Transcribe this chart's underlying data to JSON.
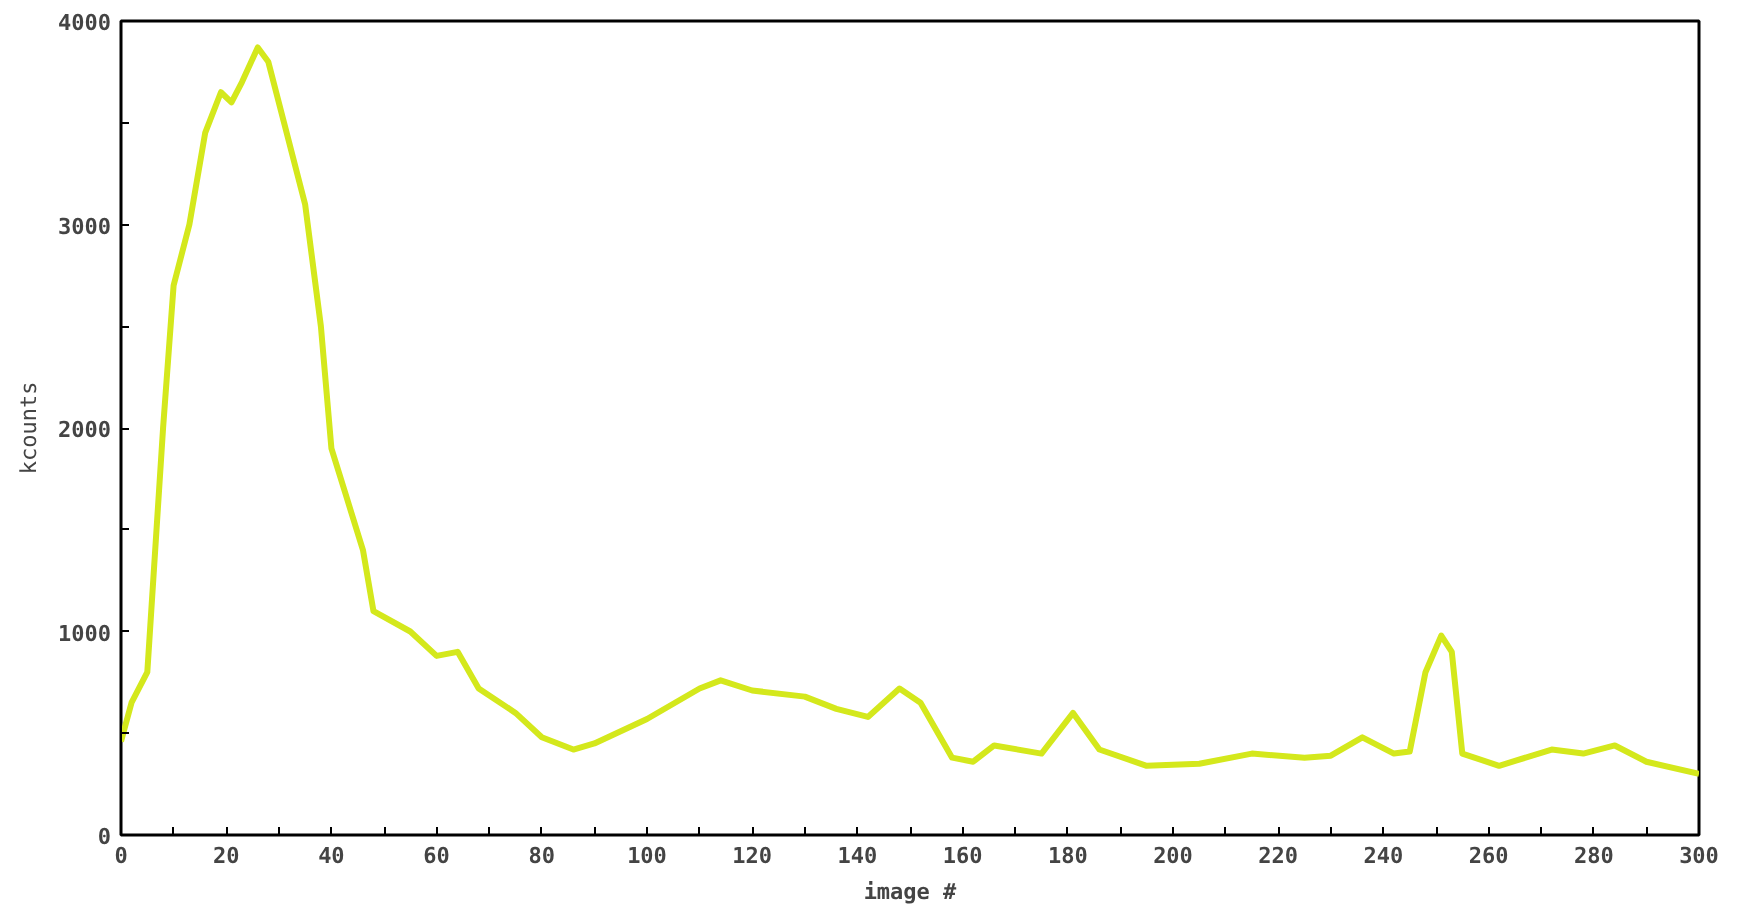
{
  "chart_data": {
    "type": "line",
    "xlabel": "image #",
    "ylabel": "kcounts",
    "x": [
      0,
      2,
      5,
      8,
      10,
      13,
      16,
      19,
      21,
      23,
      26,
      28,
      31,
      35,
      38,
      40,
      43,
      46,
      48,
      55,
      60,
      64,
      68,
      75,
      80,
      86,
      90,
      100,
      110,
      114,
      120,
      130,
      136,
      142,
      148,
      152,
      158,
      162,
      166,
      175,
      181,
      186,
      195,
      205,
      215,
      225,
      230,
      236,
      242,
      245,
      248,
      251,
      253,
      255,
      262,
      272,
      278,
      284,
      290,
      300
    ],
    "series": [
      {
        "color": "#d4e81c",
        "values": [
          460,
          650,
          800,
          2000,
          2700,
          3000,
          3450,
          3650,
          3600,
          3700,
          3870,
          3800,
          3500,
          3100,
          2500,
          1900,
          1650,
          1400,
          1100,
          1000,
          880,
          900,
          720,
          600,
          480,
          420,
          450,
          570,
          720,
          760,
          710,
          680,
          620,
          580,
          720,
          650,
          380,
          360,
          440,
          400,
          600,
          420,
          340,
          350,
          400,
          380,
          390,
          480,
          400,
          410,
          800,
          980,
          900,
          400,
          340,
          420,
          400,
          440,
          360,
          300
        ]
      }
    ],
    "xlim": [
      0,
      300
    ],
    "ylim": [
      0,
      4000
    ],
    "xticks": [
      0,
      {
        "value": 10,
        "label": null
      },
      20,
      {
        "value": 30,
        "label": null
      },
      40,
      {
        "value": 50,
        "label": null
      },
      60,
      {
        "value": 70,
        "label": null
      },
      80,
      {
        "value": 90,
        "label": null
      },
      100,
      {
        "value": 110,
        "label": null
      },
      120,
      {
        "value": 130,
        "label": null
      },
      140,
      {
        "value": 150,
        "label": null
      },
      160,
      {
        "value": 170,
        "label": null
      },
      180,
      {
        "value": 190,
        "label": null
      },
      200,
      {
        "value": 210,
        "label": null
      },
      220,
      {
        "value": 230,
        "label": null
      },
      240,
      {
        "value": 250,
        "label": null
      },
      260,
      {
        "value": 270,
        "label": null
      },
      280,
      {
        "value": 290,
        "label": null
      },
      300
    ],
    "yticks": [
      0,
      {
        "value": 500,
        "label": null
      },
      1000,
      {
        "value": 1500,
        "label": null
      },
      2000,
      {
        "value": 2500,
        "label": null
      },
      3000,
      {
        "value": 3500,
        "label": null
      },
      4000
    ],
    "grid": false,
    "marker": "none",
    "line_style": "solid"
  }
}
